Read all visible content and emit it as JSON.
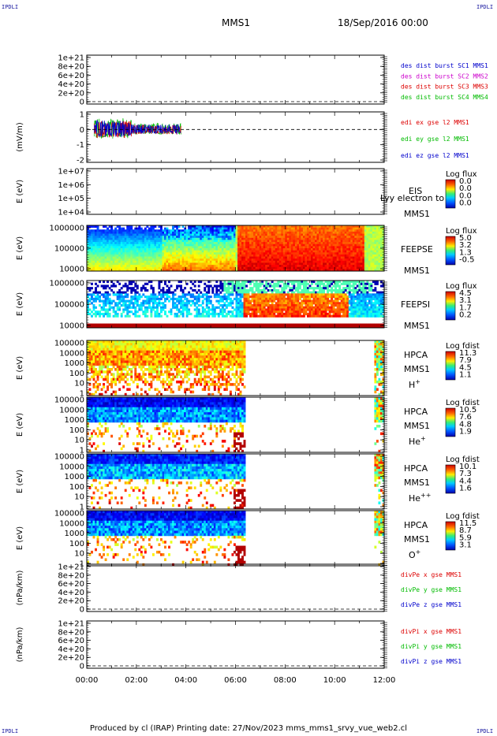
{
  "corner_label": "IPDLI",
  "header": {
    "spacecraft": "MMS1",
    "date": "18/Sep/2016 00:00"
  },
  "footer": "Produced by cl (IRAP)   Printing date: 27/Nov/2023   mms_mms1_srvy_vue_web2.cl",
  "colors": {
    "mms1": "#0000cc",
    "mms2": "#cc00cc",
    "mms3": "#dd0000",
    "mms4": "#00bb00",
    "x": "#dd0000",
    "y": "#00bb00",
    "z": "#0000cc"
  },
  "chart_data": {
    "type": "multi-panel spectrogram / time series",
    "time_axis": {
      "ticks": [
        "00:00",
        "02:00",
        "04:00",
        "06:00",
        "08:00",
        "10:00",
        "12:00"
      ],
      "range_hours": [
        0,
        12
      ]
    },
    "panels": [
      {
        "id": "des-dist",
        "type": "line",
        "ylabel": "",
        "yticks": [
          "1e+21",
          "8e+20",
          "6e+20",
          "4e+20",
          "2e+20",
          "0"
        ],
        "legend": [
          "des dist burst SC1 MMS1",
          "des dist burst SC2 MMS2",
          "des dist burst SC3 MMS3",
          "des dist burst SC4 MMS4"
        ],
        "legend_colors": [
          "mms1",
          "mms2",
          "mms3",
          "mms4"
        ]
      },
      {
        "id": "edi",
        "type": "line",
        "ylabel": "(mV/m)",
        "yticks": [
          "1",
          "0",
          "-1",
          "-2"
        ],
        "ylim": [
          -2.5,
          2
        ],
        "legend": [
          "edi ex gse l2 MMS1",
          "edi ey gse l2 MMS1",
          "edi ez gse l2 MMS1"
        ],
        "legend_colors": [
          "x",
          "y",
          "z"
        ],
        "data_time_hours": [
          0.3,
          3.8
        ],
        "envelope_mV_m": {
          "ex": [
            -1.1,
            1.1
          ],
          "ey": [
            -1.2,
            1.5
          ],
          "ez": [
            -1.0,
            1.2
          ]
        }
      },
      {
        "id": "eis",
        "type": "heatmap",
        "ylabel": "E (eV)",
        "yticks": [
          "1e+07",
          "1e+06",
          "1e+05",
          "1e+04"
        ],
        "labels": [
          "EIS",
          "MMS1"
        ],
        "overlay_text": "Lyy electron to",
        "cbar_title": "Log flux",
        "cbar_ticks": [
          "0.0",
          "0.0",
          "0.0",
          "0.0"
        ],
        "empty": true
      },
      {
        "id": "feeps-e",
        "type": "heatmap",
        "ylabel": "E (eV)",
        "yticks": [
          "1000000",
          "100000",
          "10000"
        ],
        "labels": [
          "FEEPSE",
          "MMS1"
        ],
        "cbar_title": "Log flux",
        "cbar_ticks": [
          "5.0",
          "3.2",
          "1.3",
          "-0.5"
        ]
      },
      {
        "id": "feeps-i",
        "type": "heatmap",
        "ylabel": "E (eV)",
        "yticks": [
          "1000000",
          "100000",
          "10000"
        ],
        "labels": [
          "FEEPSI",
          "MMS1"
        ],
        "cbar_title": "Log flux",
        "cbar_ticks": [
          "4.5",
          "3.1",
          "1.7",
          "0.2"
        ]
      },
      {
        "id": "hpca-h",
        "type": "heatmap",
        "ylabel": "E (eV)",
        "yticks": [
          "100000",
          "10000",
          "1000",
          "100",
          "10",
          "1"
        ],
        "labels": [
          "HPCA",
          "MMS1"
        ],
        "species": "H",
        "species_sup": "+",
        "cbar_title": "Log fdist",
        "cbar_ticks": [
          "11.3",
          "7.9",
          "4.5",
          "1.1"
        ]
      },
      {
        "id": "hpca-he",
        "type": "heatmap",
        "ylabel": "E (eV)",
        "yticks": [
          "100000",
          "10000",
          "1000",
          "100",
          "10",
          "1"
        ],
        "labels": [
          "HPCA",
          "MMS1"
        ],
        "species": "He",
        "species_sup": "+",
        "cbar_title": "Log fdist",
        "cbar_ticks": [
          "10.5",
          "7.6",
          "4.8",
          "1.9"
        ]
      },
      {
        "id": "hpca-he2",
        "type": "heatmap",
        "ylabel": "E (eV)",
        "yticks": [
          "100000",
          "10000",
          "1000",
          "100",
          "10",
          "1"
        ],
        "labels": [
          "HPCA",
          "MMS1"
        ],
        "species": "He",
        "species_sup": "++",
        "cbar_title": "Log fdist",
        "cbar_ticks": [
          "10.1",
          "7.3",
          "4.4",
          "1.6"
        ]
      },
      {
        "id": "hpca-o",
        "type": "heatmap",
        "ylabel": "E (eV)",
        "yticks": [
          "100000",
          "10000",
          "1000",
          "100",
          "10",
          "1"
        ],
        "labels": [
          "HPCA",
          "MMS1"
        ],
        "species": "O",
        "species_sup": "+",
        "cbar_title": "Log fdist",
        "cbar_ticks": [
          "11.5",
          "8.7",
          "5.9",
          "3.1"
        ]
      },
      {
        "id": "divpe",
        "type": "line",
        "ylabel": "(nPa/km)",
        "yticks": [
          "1e+21",
          "8e+20",
          "6e+20",
          "4e+20",
          "2e+20",
          "0"
        ],
        "legend": [
          "divPe x gse MMS1",
          "divPe y gse MMS1",
          "divPe z gse MMS1"
        ],
        "legend_colors": [
          "x",
          "y",
          "z"
        ]
      },
      {
        "id": "divpi",
        "type": "line",
        "ylabel": "(nPa/km)",
        "yticks": [
          "1e+21",
          "8e+20",
          "6e+20",
          "4e+20",
          "2e+20",
          "0"
        ],
        "legend": [
          "divPi x gse MMS1",
          "divPi y gse MMS1",
          "divPi z gse MMS1"
        ],
        "legend_colors": [
          "x",
          "y",
          "z"
        ]
      }
    ]
  }
}
